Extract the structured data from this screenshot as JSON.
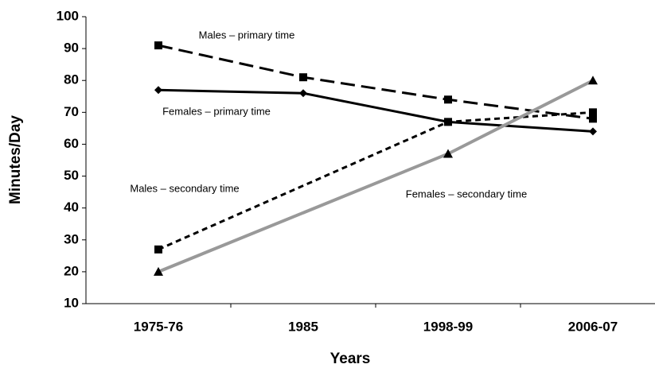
{
  "chart_data": {
    "type": "line",
    "x_label": "Years",
    "y_label": "Minutes/Day",
    "categories": [
      "1975-76",
      "1985",
      "1998-99",
      "2006-07"
    ],
    "span_gaps": true,
    "series": [
      {
        "name": "Males – primary time",
        "color": "#000000",
        "dash": "long",
        "marker": "square",
        "values": [
          91,
          81,
          74,
          68
        ]
      },
      {
        "name": "Females – primary time",
        "color": "#000000",
        "dash": "solid",
        "marker": "diamond",
        "values": [
          77,
          76,
          67,
          64
        ]
      },
      {
        "name": "Males – secondary time",
        "color": "#000000",
        "dash": "short",
        "marker": "square",
        "values": [
          27,
          null,
          67,
          70
        ]
      },
      {
        "name": "Females – secondary time",
        "color": "#999999",
        "dash": "solid",
        "marker": "triangle",
        "values": [
          20,
          null,
          57,
          80
        ]
      }
    ],
    "ylim": [
      10,
      100
    ],
    "yticks": [
      10,
      20,
      30,
      40,
      50,
      60,
      70,
      80,
      90,
      100
    ]
  }
}
